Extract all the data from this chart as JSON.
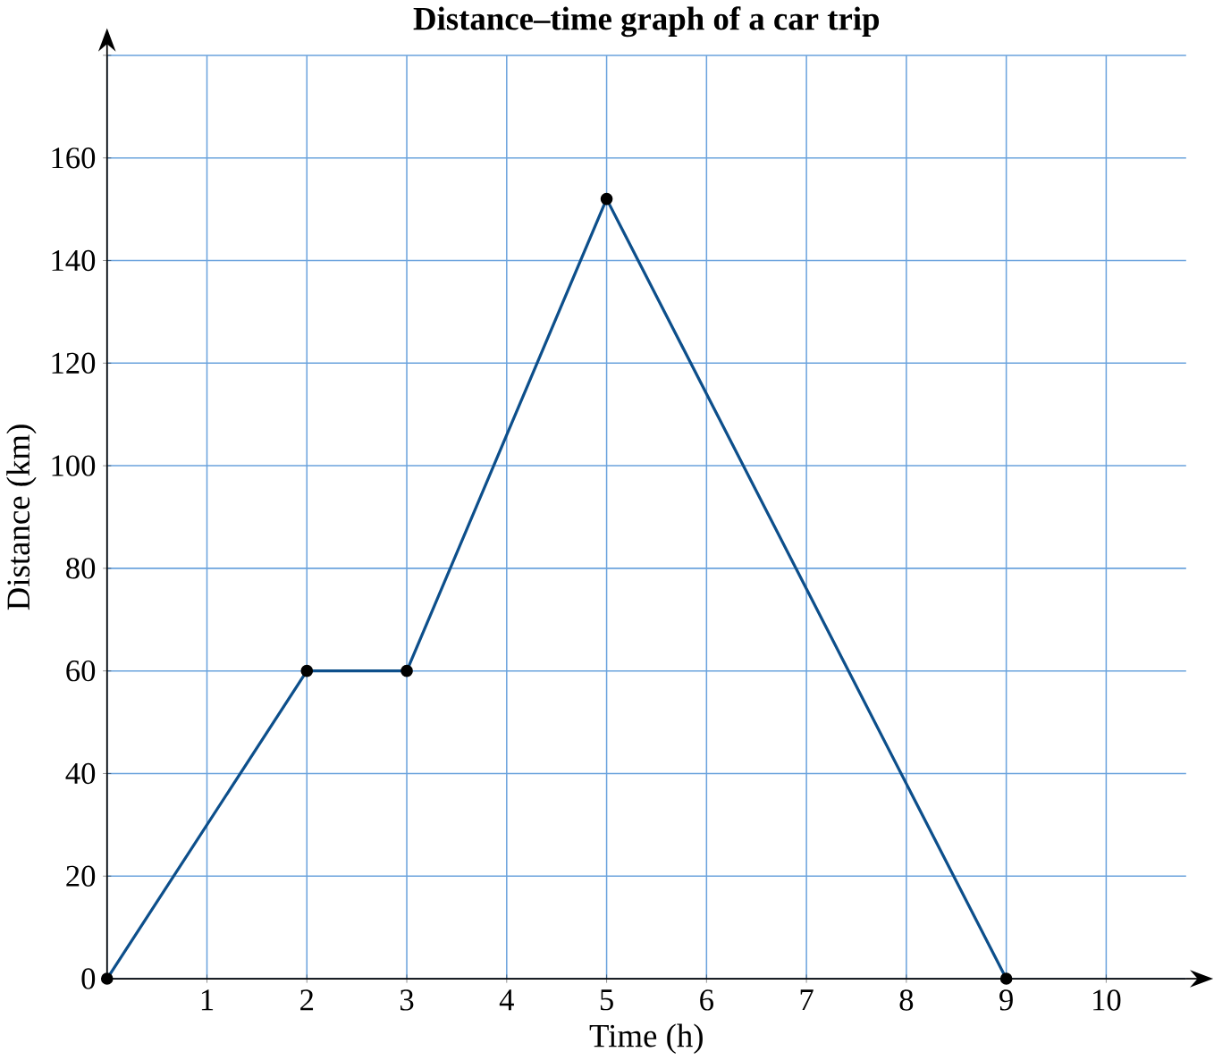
{
  "chart_data": {
    "type": "line",
    "title": "Distance–time graph of a car trip",
    "xlabel": "Time (h)",
    "ylabel": "Distance (km)",
    "x": [
      0,
      2,
      3,
      5,
      9
    ],
    "series": [
      {
        "color": "#0d4f8b",
        "values": [
          0,
          60,
          60,
          152,
          0
        ]
      }
    ],
    "xlim": [
      0,
      10.8
    ],
    "ylim": [
      0,
      180
    ],
    "xticks": [
      {
        "value": 0,
        "label": null
      },
      1,
      2,
      3,
      4,
      5,
      6,
      7,
      8,
      9,
      10
    ],
    "yticks": [
      0,
      20,
      40,
      60,
      80,
      100,
      120,
      140,
      160,
      {
        "value": 180,
        "label": null
      }
    ],
    "grid": true,
    "marker": "circle",
    "line_style": "solid"
  }
}
